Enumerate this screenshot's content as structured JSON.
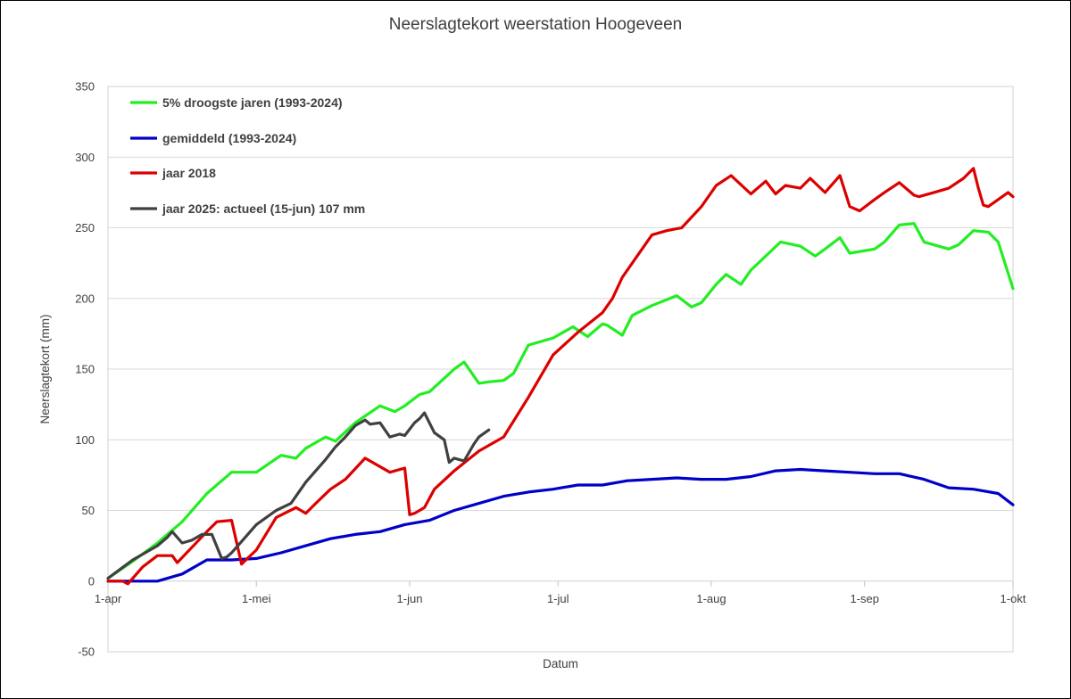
{
  "chart_data": {
    "type": "line",
    "title": "Neerslagtekort weerstation Hoogeveen",
    "xlabel": "Datum",
    "ylabel": "Neerslagtekort (mm)",
    "ylim": [
      -50,
      350
    ],
    "yticks": [
      -50,
      0,
      50,
      100,
      150,
      200,
      250,
      300,
      350
    ],
    "xlim": [
      0,
      183
    ],
    "xticks": [
      {
        "day": 0,
        "label": "1-apr"
      },
      {
        "day": 30,
        "label": "1-mei"
      },
      {
        "day": 61,
        "label": "1-jun"
      },
      {
        "day": 91,
        "label": "1-jul"
      },
      {
        "day": 122,
        "label": "1-aug"
      },
      {
        "day": 153,
        "label": "1-sep"
      },
      {
        "day": 183,
        "label": "1-okt"
      }
    ],
    "x_unit": "days since 1 April",
    "grid": "horizontal",
    "legend_position": "top-left",
    "series": [
      {
        "name": "5% droogste jaren (1993-2024)",
        "color": "#22ee22",
        "x": [
          0,
          5,
          10,
          15,
          20,
          25,
          30,
          35,
          38,
          40,
          44,
          46,
          50,
          55,
          58,
          60,
          63,
          65,
          70,
          72,
          75,
          77,
          80,
          82,
          85,
          90,
          94,
          97,
          100,
          101,
          104,
          106,
          110,
          115,
          118,
          120,
          123,
          125,
          128,
          130,
          136,
          140,
          143,
          145,
          148,
          150,
          155,
          157,
          160,
          163,
          165,
          170,
          172,
          175,
          178,
          180,
          182,
          183
        ],
        "values": [
          2,
          14,
          27,
          42,
          62,
          77,
          77,
          89,
          87,
          94,
          102,
          99,
          112,
          124,
          120,
          124,
          132,
          134,
          150,
          155,
          140,
          141,
          142,
          147,
          167,
          172,
          180,
          173,
          182,
          181,
          174,
          188,
          195,
          202,
          194,
          197,
          210,
          217,
          210,
          220,
          240,
          237,
          230,
          235,
          243,
          232,
          235,
          240,
          252,
          253,
          240,
          235,
          238,
          248,
          247,
          240,
          218,
          207
        ]
      },
      {
        "name": "gemiddeld (1993-2024)",
        "color": "#0000c8",
        "x": [
          0,
          5,
          10,
          15,
          20,
          25,
          30,
          35,
          40,
          45,
          50,
          55,
          60,
          65,
          70,
          75,
          80,
          85,
          90,
          95,
          100,
          105,
          110,
          115,
          120,
          125,
          130,
          135,
          140,
          145,
          150,
          155,
          160,
          165,
          170,
          175,
          180,
          183
        ],
        "values": [
          0,
          0,
          0,
          5,
          15,
          15,
          16,
          20,
          25,
          30,
          33,
          35,
          40,
          43,
          50,
          55,
          60,
          63,
          65,
          68,
          68,
          71,
          72,
          73,
          72,
          72,
          74,
          78,
          79,
          78,
          77,
          76,
          76,
          72,
          66,
          65,
          62,
          54
        ]
      },
      {
        "name": "jaar 2018",
        "color": "#dd0000",
        "x": [
          0,
          3,
          4,
          7,
          10,
          13,
          14,
          17,
          20,
          22,
          25,
          27,
          30,
          34,
          38,
          40,
          42,
          45,
          48,
          52,
          57,
          60,
          61,
          62,
          64,
          66,
          70,
          75,
          80,
          85,
          90,
          95,
          100,
          102,
          104,
          107,
          110,
          113,
          116,
          120,
          123,
          126,
          130,
          133,
          135,
          137,
          140,
          142,
          145,
          148,
          150,
          152,
          155,
          157,
          160,
          163,
          164,
          167,
          170,
          173,
          175,
          176,
          177,
          178,
          180,
          182,
          183
        ],
        "values": [
          0,
          0,
          -2,
          10,
          18,
          18,
          13,
          24,
          35,
          42,
          43,
          12,
          22,
          45,
          52,
          48,
          55,
          65,
          72,
          87,
          77,
          80,
          47,
          48,
          52,
          65,
          78,
          92,
          102,
          130,
          160,
          176,
          190,
          200,
          215,
          230,
          245,
          248,
          250,
          265,
          280,
          287,
          274,
          283,
          274,
          280,
          278,
          285,
          275,
          287,
          265,
          262,
          270,
          275,
          282,
          273,
          272,
          275,
          278,
          285,
          292,
          278,
          266,
          265,
          270,
          275,
          272
        ]
      },
      {
        "name": "jaar 2025: actueel (15-jun) 107 mm",
        "color": "#404040",
        "x": [
          0,
          5,
          10,
          12,
          13,
          15,
          17,
          19,
          21,
          23,
          24,
          25,
          27,
          30,
          34,
          37,
          40,
          44,
          46,
          48,
          50,
          52,
          53,
          55,
          57,
          59,
          60,
          62,
          63,
          64,
          66,
          68,
          69,
          70,
          72,
          74,
          75,
          77
        ],
        "values": [
          2,
          15,
          25,
          31,
          35,
          27,
          29,
          33,
          33,
          16,
          17,
          20,
          28,
          40,
          50,
          55,
          70,
          86,
          95,
          102,
          110,
          114,
          111,
          112,
          102,
          104,
          103,
          112,
          115,
          119,
          105,
          100,
          84,
          87,
          85,
          97,
          102,
          107
        ]
      }
    ]
  }
}
